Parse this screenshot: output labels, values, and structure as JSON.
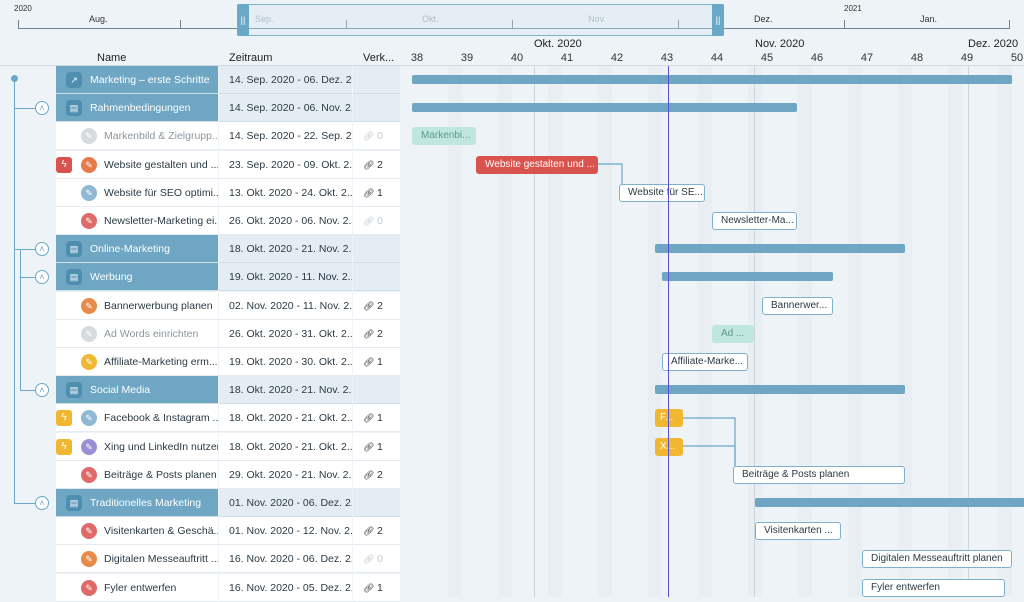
{
  "overview": {
    "years": [
      {
        "label": "2020"
      },
      {
        "label": "2021"
      }
    ],
    "months": [
      {
        "label": "Aug.",
        "dim": false
      },
      {
        "label": "Sep.",
        "dim": true
      },
      {
        "label": "Okt.",
        "dim": true
      },
      {
        "label": "Nov.",
        "dim": true
      },
      {
        "label": "Dez.",
        "dim": false
      },
      {
        "label": "Jan.",
        "dim": false
      }
    ],
    "handle_left": "||",
    "handle_right": "||"
  },
  "columns": {
    "name": "Name",
    "range": "Zeitraum",
    "dep": "Verk..."
  },
  "months_header": [
    {
      "label": "Okt. 2020"
    },
    {
      "label": "Nov. 2020"
    },
    {
      "label": "Dez. 2020"
    }
  ],
  "weeks": [
    "38",
    "39",
    "40",
    "41",
    "42",
    "43",
    "44",
    "45",
    "46",
    "47",
    "48",
    "49",
    "50"
  ],
  "colors": {
    "group": "#6ea6c3",
    "critical": "#d9534f",
    "milestone": "#f0b732",
    "done": "#bfe6df",
    "today": "#5a4fcf"
  },
  "rows": [
    {
      "type": "group",
      "level": 0,
      "name": "Marketing – erste Schritte",
      "range": "14. Sep. 2020 - 06. Dez. 2...",
      "dep": "",
      "icon": "chart-icon"
    },
    {
      "type": "group",
      "level": 1,
      "name": "Rahmenbedingungen",
      "range": "14. Sep. 2020 - 06. Nov. 2...",
      "dep": "",
      "icon": "folder-icon"
    },
    {
      "type": "task",
      "name": "Markenbild & Zielgrupp...",
      "range": "14. Sep. 2020 - 22. Sep. 2...",
      "dep": "0",
      "done": true,
      "color": "#d6dbe0",
      "flag": ""
    },
    {
      "type": "task",
      "name": "Website gestalten und ...",
      "range": "23. Sep. 2020 - 09. Okt. 2...",
      "dep": "2",
      "done": false,
      "color": "#e67a4a",
      "flag": "critical"
    },
    {
      "type": "task",
      "name": "Website für SEO optimi...",
      "range": "13. Okt. 2020 - 24. Okt. 2...",
      "dep": "1",
      "done": false,
      "color": "#8fb8d4",
      "flag": ""
    },
    {
      "type": "task",
      "name": "Newsletter-Marketing ei...",
      "range": "26. Okt. 2020 - 06. Nov. 2...",
      "dep": "0",
      "done": false,
      "color": "#e06a6a",
      "flag": ""
    },
    {
      "type": "group",
      "level": 1,
      "name": "Online-Marketing",
      "range": "18. Okt. 2020 - 21. Nov. 2...",
      "dep": "",
      "icon": "folder-icon"
    },
    {
      "type": "group",
      "level": 2,
      "name": "Werbung",
      "range": "19. Okt. 2020 - 11. Nov. 2...",
      "dep": "",
      "icon": "folder-icon"
    },
    {
      "type": "task",
      "name": "Bannerwerbung planen",
      "range": "02. Nov. 2020 - 11. Nov. 2...",
      "dep": "2",
      "done": false,
      "color": "#e88a4a",
      "flag": ""
    },
    {
      "type": "task",
      "name": "Ad Words einrichten",
      "range": "26. Okt. 2020 - 31. Okt. 2...",
      "dep": "2",
      "done": true,
      "color": "#d6dbe0",
      "flag": ""
    },
    {
      "type": "task",
      "name": "Affiliate-Marketing erm...",
      "range": "19. Okt. 2020 - 30. Okt. 2...",
      "dep": "1",
      "done": false,
      "color": "#f0b732",
      "flag": ""
    },
    {
      "type": "group",
      "level": 2,
      "name": "Social Media",
      "range": "18. Okt. 2020 - 21. Nov. 2...",
      "dep": "",
      "icon": "folder-icon"
    },
    {
      "type": "task",
      "name": "Facebook & Instagram ...",
      "range": "18. Okt. 2020 - 21. Okt. 2...",
      "dep": "1",
      "done": false,
      "color": "#8fb8d4",
      "flag": "milestone"
    },
    {
      "type": "task",
      "name": "Xing und LinkedIn nutzen",
      "range": "18. Okt. 2020 - 21. Okt. 2...",
      "dep": "1",
      "done": false,
      "color": "#9a8ed6",
      "flag": "milestone"
    },
    {
      "type": "task",
      "name": "Beiträge & Posts planen",
      "range": "29. Okt. 2020 - 21. Nov. 2...",
      "dep": "2",
      "done": false,
      "color": "#e06a6a",
      "flag": ""
    },
    {
      "type": "group",
      "level": 1,
      "name": "Traditionelles Marketing",
      "range": "01. Nov. 2020 - 06. Dez. 2...",
      "dep": "",
      "icon": "folder-icon"
    },
    {
      "type": "task",
      "name": "Visitenkarten & Geschä...",
      "range": "01. Nov. 2020 - 12. Nov. 2...",
      "dep": "2",
      "done": false,
      "color": "#e06a6a",
      "flag": ""
    },
    {
      "type": "task",
      "name": "Digitalen Messeauftritt ...",
      "range": "16. Nov. 2020 - 06. Dez. 2...",
      "dep": "0",
      "done": false,
      "color": "#e88a4a",
      "flag": ""
    },
    {
      "type": "task",
      "name": "Fyler entwerfen",
      "range": "16. Nov. 2020 - 05. Dez. 2...",
      "dep": "1",
      "done": false,
      "color": "#e06a6a",
      "flag": ""
    }
  ],
  "bars": [
    {
      "row": 0,
      "kind": "summary",
      "label": ""
    },
    {
      "row": 1,
      "kind": "summary",
      "label": ""
    },
    {
      "row": 2,
      "kind": "done",
      "label": "Markenbi..."
    },
    {
      "row": 3,
      "kind": "crit",
      "label": "Website gestalten und ..."
    },
    {
      "row": 4,
      "kind": "outline",
      "label": "Website für SE..."
    },
    {
      "row": 5,
      "kind": "outline",
      "label": "Newsletter-Ma..."
    },
    {
      "row": 6,
      "kind": "summary",
      "label": ""
    },
    {
      "row": 7,
      "kind": "summary",
      "label": ""
    },
    {
      "row": 8,
      "kind": "outline",
      "label": "Bannerwer..."
    },
    {
      "row": 9,
      "kind": "done",
      "label": "Ad ..."
    },
    {
      "row": 10,
      "kind": "outline",
      "label": "Affiliate-Marke..."
    },
    {
      "row": 11,
      "kind": "summary",
      "label": ""
    },
    {
      "row": 12,
      "kind": "milestone",
      "label": "F..."
    },
    {
      "row": 13,
      "kind": "milestone",
      "label": "X..."
    },
    {
      "row": 14,
      "kind": "outline",
      "label": "Beiträge & Posts planen"
    },
    {
      "row": 15,
      "kind": "summary",
      "label": ""
    },
    {
      "row": 16,
      "kind": "outline",
      "label": "Visitenkarten ..."
    },
    {
      "row": 17,
      "kind": "outline",
      "label": "Digitalen Messeauftritt planen"
    },
    {
      "row": 18,
      "kind": "outline",
      "label": "Fyler entwerfen"
    }
  ]
}
